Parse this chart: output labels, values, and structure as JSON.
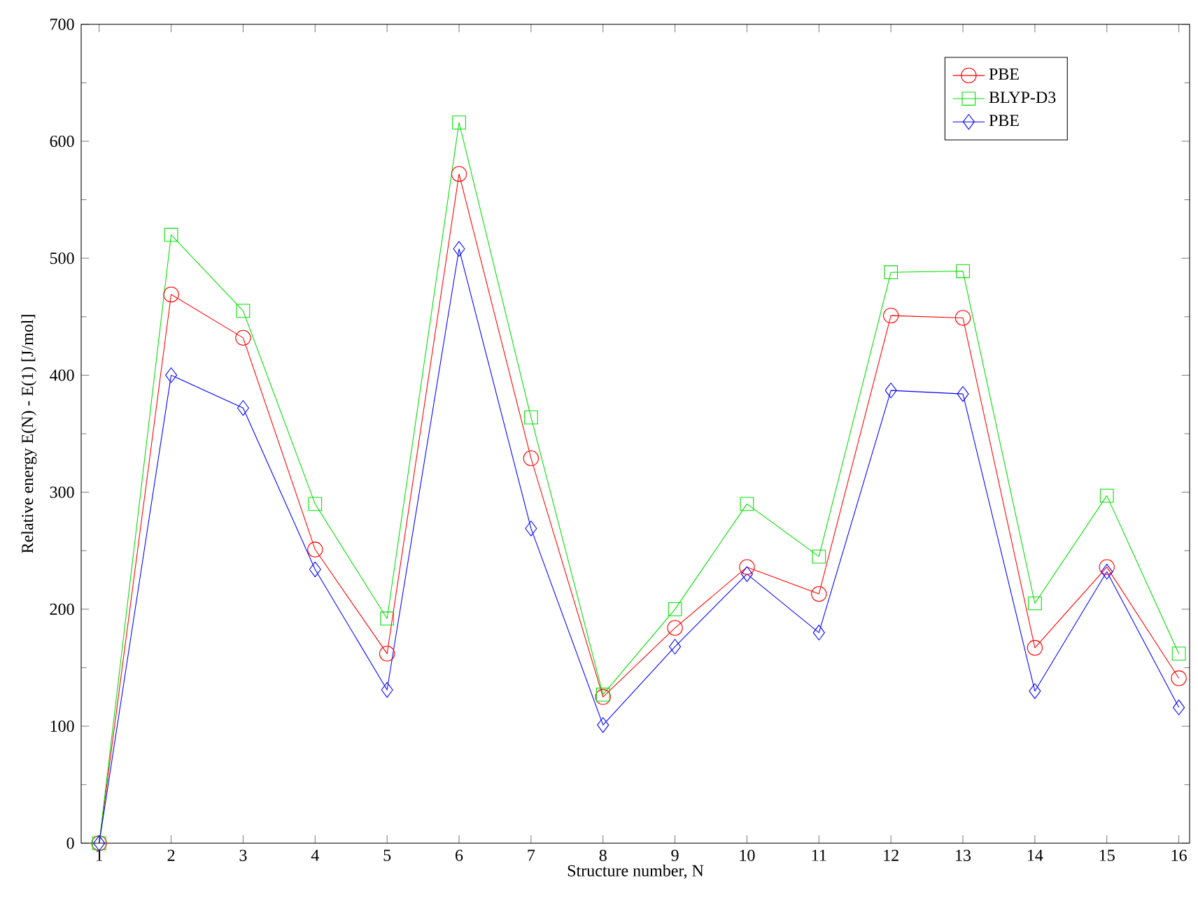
{
  "chart_data": {
    "type": "line",
    "xlabel": "Structure number, N",
    "ylabel": "Relative energy E(N) - E(1) [J/mol]",
    "x": [
      1,
      2,
      3,
      4,
      5,
      6,
      7,
      8,
      9,
      10,
      11,
      12,
      13,
      14,
      15,
      16
    ],
    "xlim": [
      0.75,
      16.15
    ],
    "xticks": [
      1,
      2,
      3,
      4,
      5,
      6,
      7,
      8,
      9,
      10,
      11,
      12,
      13,
      14,
      15,
      16
    ],
    "ylim": [
      0,
      700
    ],
    "yticks": [
      0,
      100,
      200,
      300,
      400,
      500,
      600,
      700
    ],
    "legend": "top right",
    "grid": false,
    "line_style": "solid",
    "series": [
      {
        "name": "PBE",
        "color": "#ff0000",
        "marker": "circle",
        "values": [
          0,
          469,
          432,
          251,
          162,
          572,
          329,
          125,
          184,
          236,
          213,
          451,
          449,
          167,
          236,
          141
        ]
      },
      {
        "name": "BLYP-D3",
        "color": "#00dd00",
        "marker": "square",
        "values": [
          0,
          520,
          455,
          290,
          192,
          616,
          364,
          127,
          200,
          290,
          245,
          488,
          489,
          205,
          297,
          162
        ]
      },
      {
        "name": "PBE",
        "color": "#0000ff",
        "marker": "diamond",
        "values": [
          0,
          400,
          372,
          234,
          131,
          508,
          269,
          101,
          168,
          230,
          180,
          387,
          384,
          130,
          232,
          116
        ]
      }
    ]
  }
}
